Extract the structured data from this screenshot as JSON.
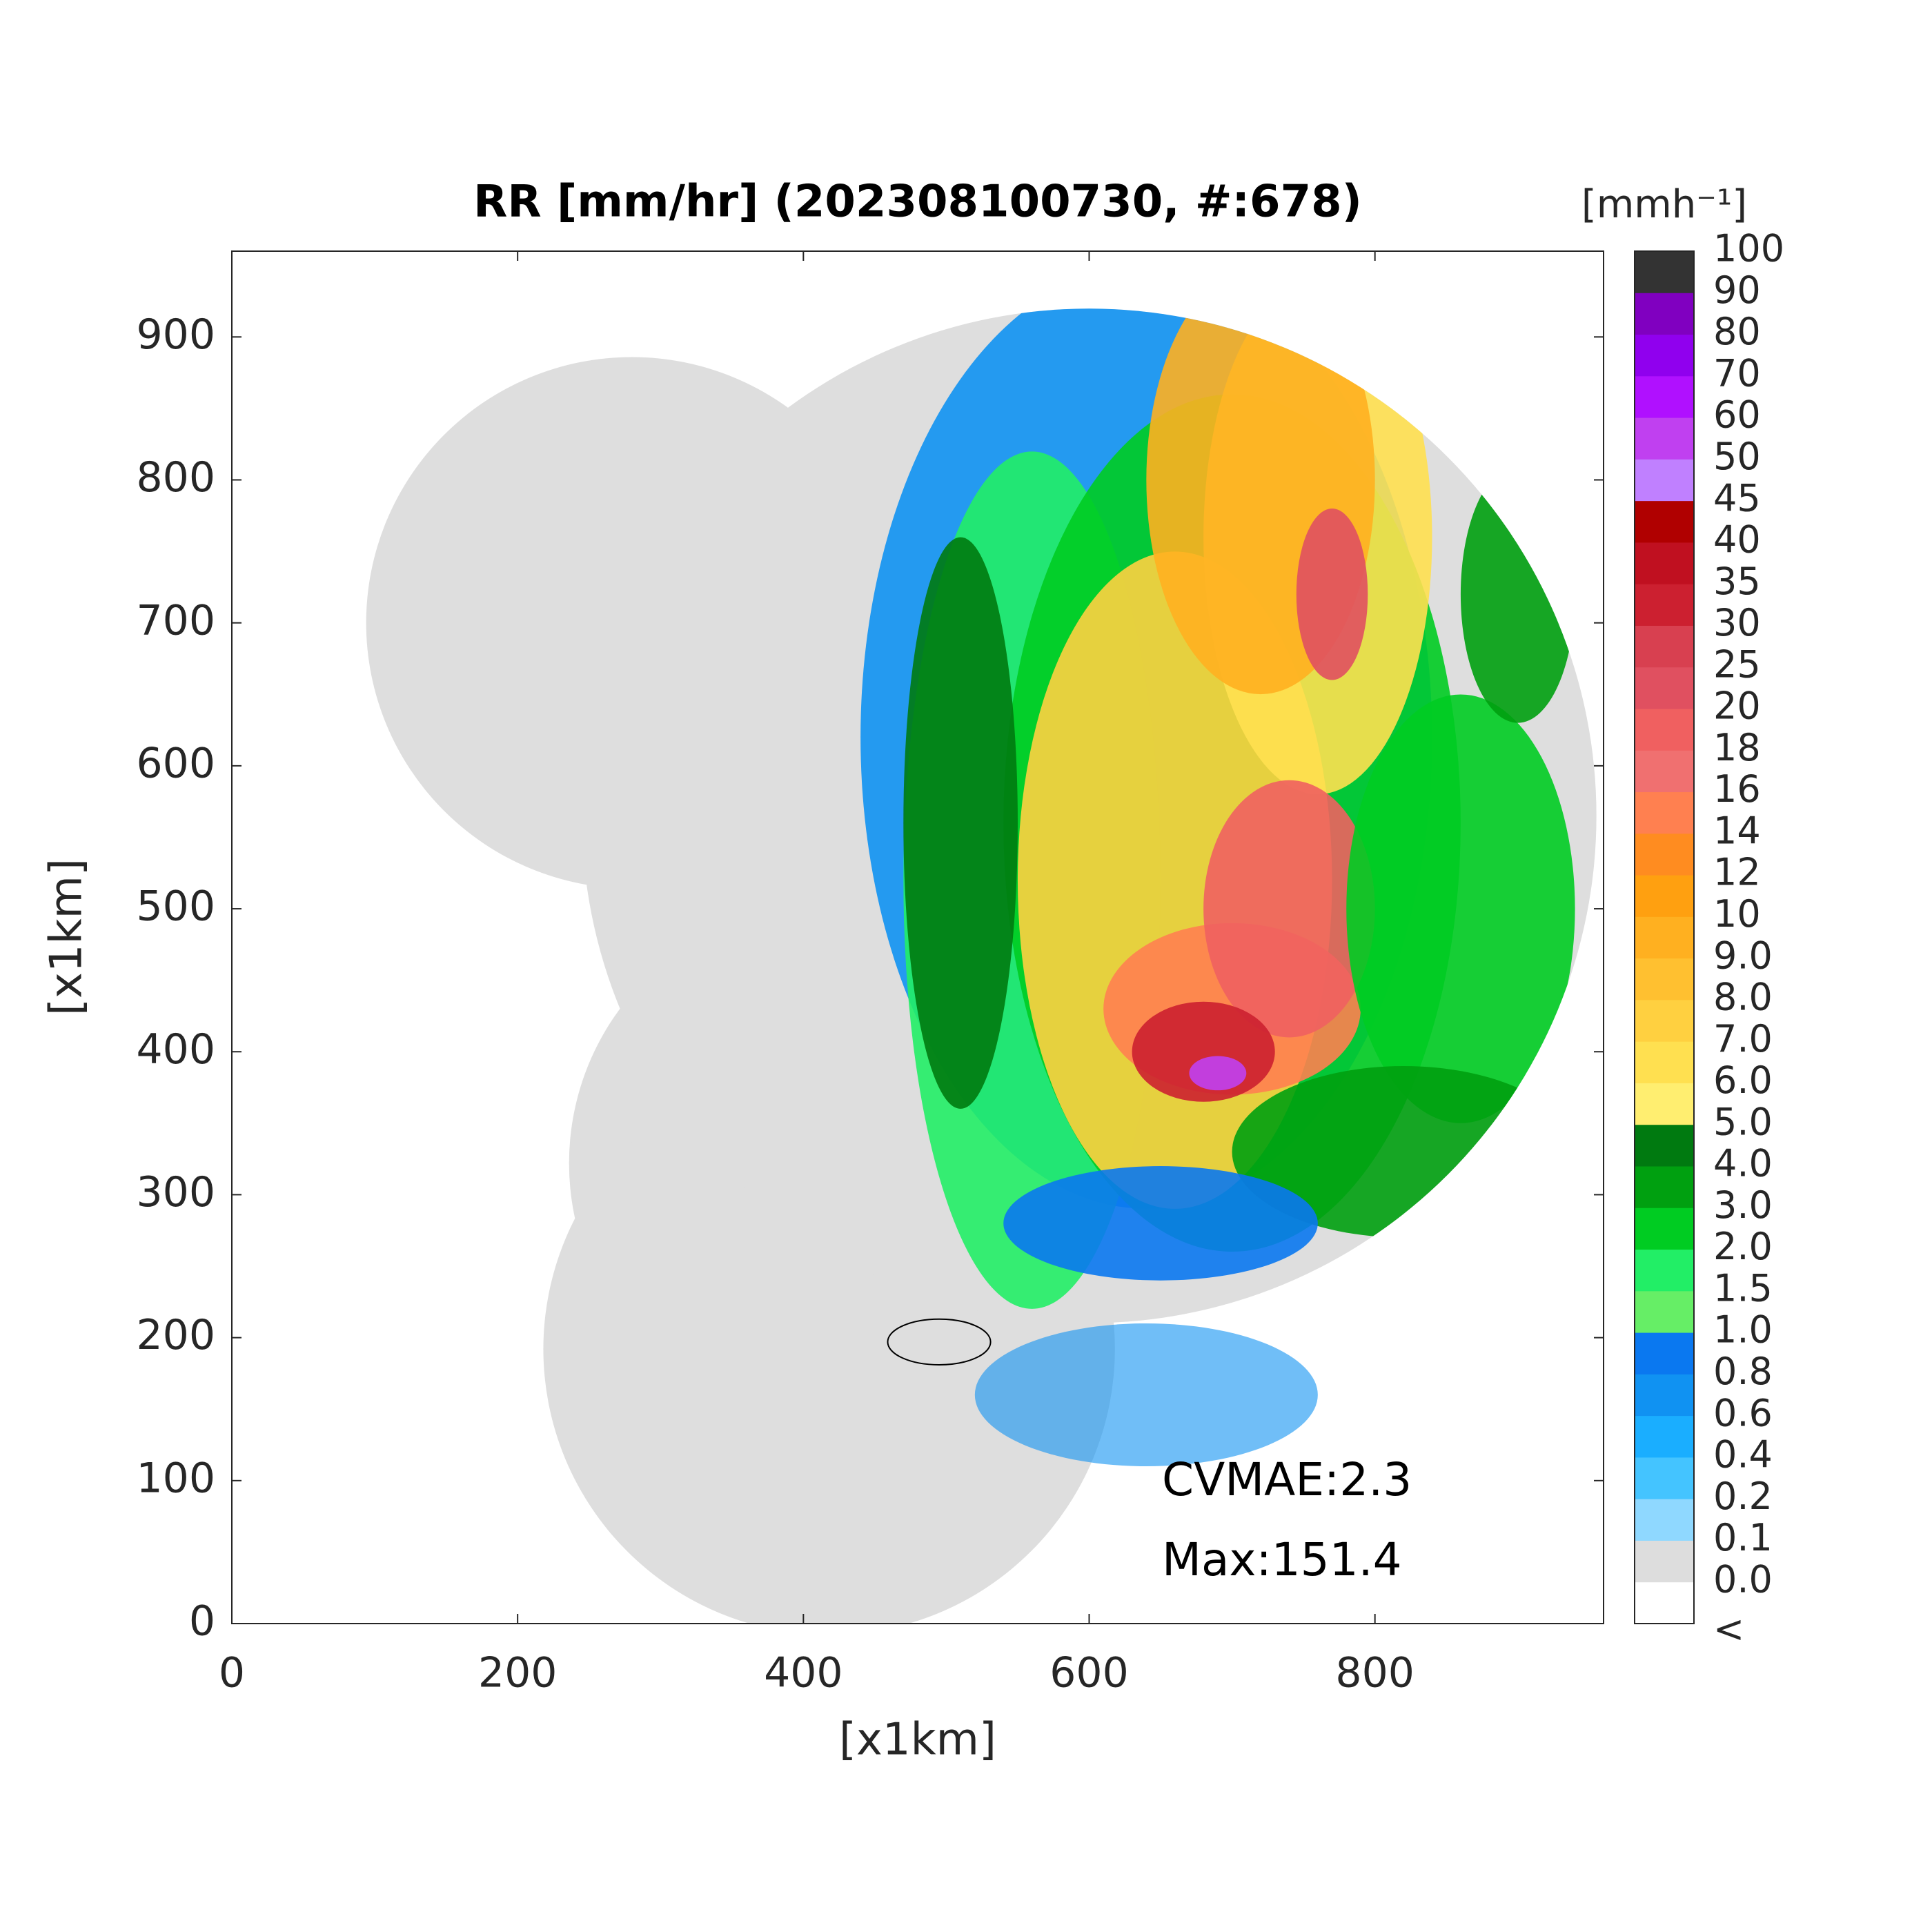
{
  "title": "RR [mm/hr] (202308100730, #:678)",
  "x_axis": {
    "label": "[x1km]",
    "lim": [
      0,
      960
    ],
    "ticks": [
      0,
      200,
      400,
      600,
      800
    ]
  },
  "y_axis": {
    "label": "[x1km]",
    "lim": [
      0,
      960
    ],
    "ticks": [
      0,
      100,
      200,
      300,
      400,
      500,
      600,
      700,
      800,
      900
    ]
  },
  "colorbar": {
    "unit_label": "[mmh⁻¹]",
    "labels": [
      "<",
      "0.0",
      "0.1",
      "0.2",
      "0.4",
      "0.6",
      "0.8",
      "1.0",
      "1.5",
      "2.0",
      "3.0",
      "4.0",
      "5.0",
      "6.0",
      "7.0",
      "8.0",
      "9.0",
      "10",
      "12",
      "14",
      "16",
      "18",
      "20",
      "25",
      "30",
      "35",
      "40",
      "45",
      "50",
      "60",
      "70",
      "80",
      "90",
      "100"
    ],
    "colors": [
      "#ffffff",
      "#dddddd",
      "#8fd8ff",
      "#44c4ff",
      "#1aaeff",
      "#1092f2",
      "#0a78f0",
      "#66ee66",
      "#22ee66",
      "#00cc22",
      "#00a010",
      "#007a10",
      "#ffee70",
      "#ffe050",
      "#ffd040",
      "#ffc030",
      "#ffb020",
      "#ffa010",
      "#ff8c20",
      "#ff8050",
      "#f07070",
      "#f06060",
      "#e05060",
      "#d84050",
      "#cc2030",
      "#c01020",
      "#b00000",
      "#c080ff",
      "#c040f0",
      "#b010ff",
      "#9000ee",
      "#8000c0",
      "#333333"
    ]
  },
  "annotations": [
    "CVMAE:2.3",
    "Max:151.4"
  ]
}
